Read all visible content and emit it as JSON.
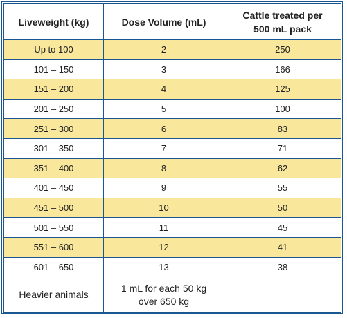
{
  "headers": {
    "liveweight": "Liveweight (kg)",
    "dose_volume": "Dose Volume (mL)",
    "cattle_treated_line1": "Cattle treated per",
    "cattle_treated_line2": "500 mL pack"
  },
  "rows": [
    {
      "liveweight": "Up to 100",
      "dose": "2",
      "cattle": "250"
    },
    {
      "liveweight": "101 – 150",
      "dose": "3",
      "cattle": "166"
    },
    {
      "liveweight": "151 – 200",
      "dose": "4",
      "cattle": "125"
    },
    {
      "liveweight": "201 – 250",
      "dose": "5",
      "cattle": "100"
    },
    {
      "liveweight": "251 – 300",
      "dose": "6",
      "cattle": "83"
    },
    {
      "liveweight": "301 – 350",
      "dose": "7",
      "cattle": "71"
    },
    {
      "liveweight": "351 – 400",
      "dose": "8",
      "cattle": "62"
    },
    {
      "liveweight": "401 – 450",
      "dose": "9",
      "cattle": "55"
    },
    {
      "liveweight": "451 – 500",
      "dose": "10",
      "cattle": "50"
    },
    {
      "liveweight": "501 – 550",
      "dose": "11",
      "cattle": "45"
    },
    {
      "liveweight": "551 – 600",
      "dose": "12",
      "cattle": "41"
    },
    {
      "liveweight": "601 – 650",
      "dose": "13",
      "cattle": "38"
    }
  ],
  "footer": {
    "liveweight": "Heavier animals",
    "dose_line1": "1 mL for each 50 kg",
    "dose_line2": "over 650 kg",
    "cattle": ""
  },
  "colors": {
    "border": "#1a5792",
    "shaded_row": "#f9e79c",
    "text": "#222222"
  }
}
